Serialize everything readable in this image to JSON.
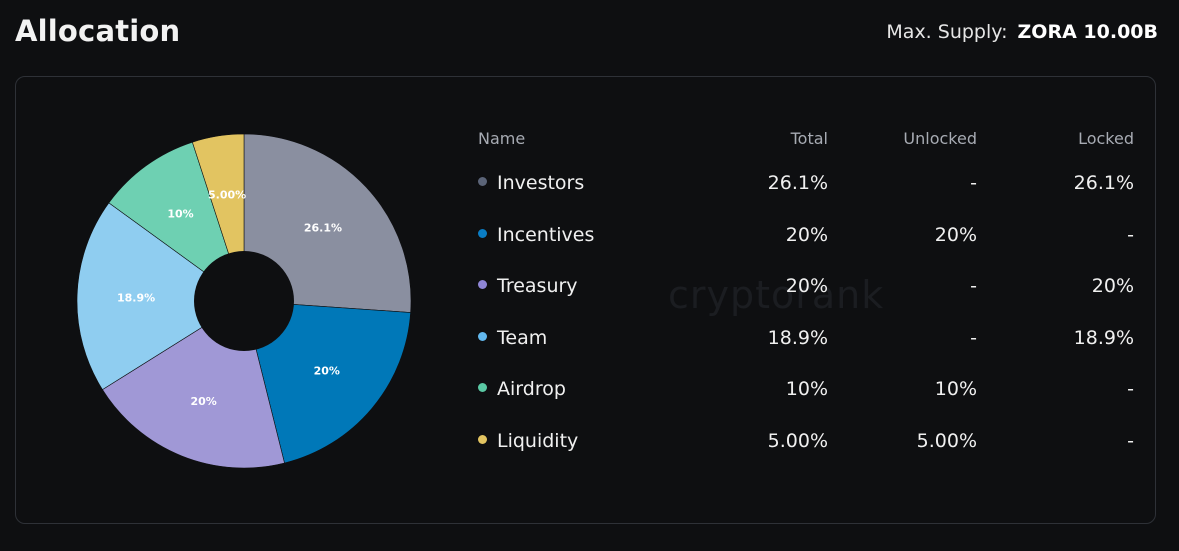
{
  "header": {
    "title": "Allocation",
    "supply_label": "Max. Supply:",
    "supply_value": "ZORA 10.00B"
  },
  "watermark": "cryptorank",
  "table": {
    "columns": {
      "name": "Name",
      "total": "Total",
      "unlocked": "Unlocked",
      "locked": "Locked"
    },
    "rows": [
      {
        "name": "Investors",
        "total": "26.1%",
        "unlocked": "-",
        "locked": "26.1%",
        "dot_color": "#5b6478"
      },
      {
        "name": "Incentives",
        "total": "20%",
        "unlocked": "20%",
        "locked": "-",
        "dot_color": "#0a7dc4"
      },
      {
        "name": "Treasury",
        "total": "20%",
        "unlocked": "-",
        "locked": "20%",
        "dot_color": "#8f86d6"
      },
      {
        "name": "Team",
        "total": "18.9%",
        "unlocked": "-",
        "locked": "18.9%",
        "dot_color": "#62b8ee"
      },
      {
        "name": "Airdrop",
        "total": "10%",
        "unlocked": "10%",
        "locked": "-",
        "dot_color": "#5ac8a4"
      },
      {
        "name": "Liquidity",
        "total": "5.00%",
        "unlocked": "5.00%",
        "locked": "-",
        "dot_color": "#e2c461"
      }
    ]
  },
  "chart_data": {
    "type": "pie",
    "donut": true,
    "categories": [
      "Investors",
      "Incentives",
      "Treasury",
      "Team",
      "Airdrop",
      "Liquidity"
    ],
    "values": [
      26.1,
      20,
      20,
      18.9,
      10,
      5.0
    ],
    "labels": [
      "26.1%",
      "20%",
      "20%",
      "18.9%",
      "10%",
      "5.00%"
    ],
    "colors": [
      "#8a8fa0",
      "#0078b8",
      "#a098d6",
      "#8fcdf0",
      "#6ed0b2",
      "#e2c461"
    ],
    "start": "12 o'clock",
    "direction": "clockwise"
  }
}
